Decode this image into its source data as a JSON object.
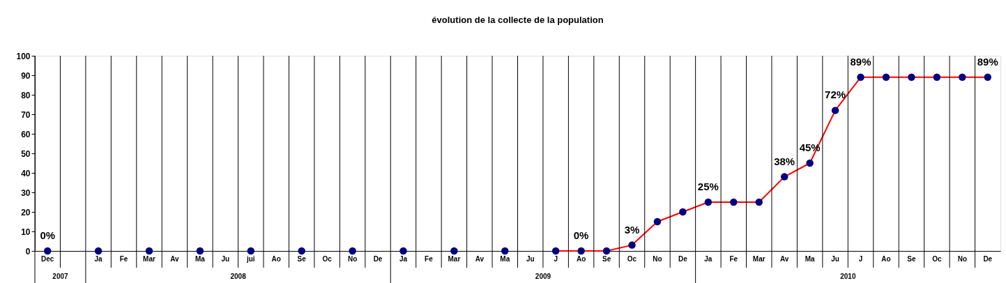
{
  "chart_data": {
    "type": "line",
    "title": "évolution de la collecte de la population",
    "categories": [
      "Dec",
      null,
      "Ja",
      "Fe",
      "Mar",
      "Av",
      "Ma",
      "Ju",
      "jui",
      "Ao",
      "Se",
      "Oc",
      "No",
      "De",
      "Ja",
      "Fe",
      "Mar",
      "Av",
      "Ma",
      "Ju",
      "J",
      "Ao",
      "Se",
      "Oc",
      "No",
      "De",
      "Ja",
      "Fe",
      "Mar",
      "Av",
      "Ma",
      "Ju",
      "J",
      "Ao",
      "Se",
      "Oc",
      "No",
      "De"
    ],
    "series": [
      {
        "color": "#ff0000",
        "colors": [
          "#000080",
          "#000080",
          "#000080",
          "#000080",
          "#000080",
          "#000080",
          "#000080",
          "#000080",
          "#000080",
          "#000080",
          "#000080",
          "#000080",
          "#000080",
          "#000080",
          "#000080",
          "#000080",
          "#000080",
          "#000080",
          "#000080",
          "#000080",
          "#000080",
          "#000080",
          "#000080",
          "#000080",
          "#000080",
          "#000080",
          "#000080",
          "#000080",
          "#000080",
          "#000080",
          "#000080",
          "#000080",
          "#000080",
          "#000080",
          "#000080",
          "#000080",
          "#000080",
          "#000080"
        ],
        "values": [
          0,
          null,
          0,
          null,
          0,
          null,
          0,
          null,
          0,
          null,
          0,
          null,
          0,
          null,
          0,
          null,
          0,
          null,
          0,
          null,
          0,
          0,
          0,
          3,
          15,
          20,
          25,
          25,
          25,
          38,
          45,
          72,
          89,
          89,
          89,
          89,
          89,
          89
        ],
        "value_labels": [
          "0%",
          null,
          null,
          null,
          null,
          null,
          null,
          null,
          null,
          null,
          null,
          null,
          null,
          null,
          null,
          null,
          null,
          null,
          null,
          null,
          null,
          "0%",
          null,
          "3%",
          null,
          null,
          "25%",
          null,
          null,
          "38%",
          "45%",
          "72%",
          "89%",
          null,
          null,
          null,
          null,
          "89%"
        ]
      }
    ],
    "ylim": [
      0,
      100
    ],
    "yticks": [
      0,
      10,
      20,
      30,
      40,
      50,
      60,
      70,
      80,
      90,
      100
    ],
    "annotations": [
      "2007",
      "2008",
      "2009",
      "2010"
    ],
    "grid": "x",
    "legend": false,
    "marker": "circle",
    "line_style": "solid"
  }
}
